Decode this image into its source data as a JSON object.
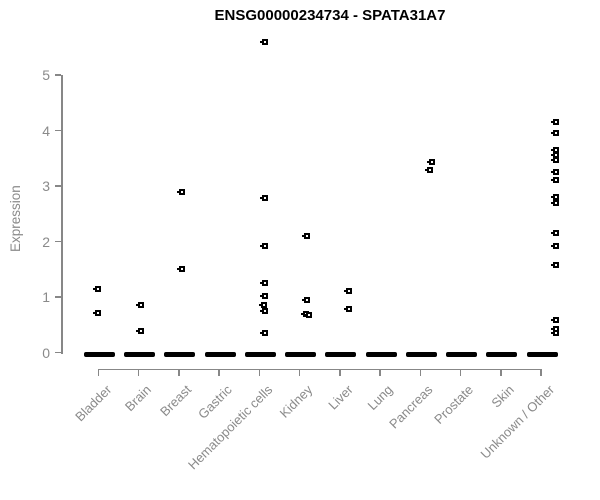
{
  "chart_data": {
    "type": "scatter",
    "subtype": "strip-plot",
    "title": "ENSG00000234734 - SPATA31A7",
    "xlabel": "",
    "ylabel": "Expression",
    "ylim": [
      0,
      5
    ],
    "yticks": [
      0,
      1,
      2,
      3,
      4,
      5
    ],
    "grid": "off",
    "legend": "none",
    "point_color": "#000000",
    "axis_color": "#878787",
    "axis_text_color": "#8a8a8a",
    "title_color": "#000000",
    "categories": [
      "Bladder",
      "Brain",
      "Breast",
      "Gastric",
      "Hematopoietic cells",
      "Kidney",
      "Liver",
      "Lung",
      "Pancreas",
      "Prostate",
      "Skin",
      "Unknown / Other"
    ],
    "note": "Each category shows a thick black bar of many overlapping points at expression 0; points listed below are the non-zero expression values [value, x_jitter_px].",
    "series": [
      {
        "name": "Bladder",
        "zero_cluster": true,
        "points": [
          [
            1.15,
            0
          ],
          [
            0.72,
            0
          ]
        ]
      },
      {
        "name": "Brain",
        "zero_cluster": true,
        "points": [
          [
            0.86,
            2.5
          ],
          [
            0.38,
            2.5
          ]
        ]
      },
      {
        "name": "Breast",
        "zero_cluster": true,
        "points": [
          [
            2.89,
            3
          ],
          [
            1.51,
            3
          ]
        ]
      },
      {
        "name": "Gastric",
        "zero_cluster": true,
        "points": []
      },
      {
        "name": "Hematopoietic cells",
        "zero_cluster": true,
        "points": [
          [
            5.59,
            5.5
          ],
          [
            2.78,
            5.5
          ],
          [
            1.92,
            5.5
          ],
          [
            1.26,
            5.5
          ],
          [
            1.01,
            5.5
          ],
          [
            0.85,
            5
          ],
          [
            0.74,
            6
          ],
          [
            0.36,
            5.5
          ]
        ]
      },
      {
        "name": "Kidney",
        "zero_cluster": true,
        "points": [
          [
            2.1,
            7.5
          ],
          [
            0.95,
            7.5
          ],
          [
            0.7,
            6
          ],
          [
            0.68,
            9.5
          ]
        ]
      },
      {
        "name": "Liver",
        "zero_cluster": true,
        "points": [
          [
            1.11,
            9
          ],
          [
            0.79,
            9
          ]
        ]
      },
      {
        "name": "Lung",
        "zero_cluster": true,
        "points": []
      },
      {
        "name": "Pancreas",
        "zero_cluster": true,
        "points": [
          [
            3.44,
            11.5
          ],
          [
            3.29,
            10
          ]
        ]
      },
      {
        "name": "Prostate",
        "zero_cluster": true,
        "points": []
      },
      {
        "name": "Skin",
        "zero_cluster": true,
        "points": []
      },
      {
        "name": "Unknown / Other",
        "zero_cluster": true,
        "points": [
          [
            4.16,
            15
          ],
          [
            3.96,
            15
          ],
          [
            3.65,
            15
          ],
          [
            3.56,
            15
          ],
          [
            3.46,
            15
          ],
          [
            3.26,
            15
          ],
          [
            3.11,
            15
          ],
          [
            2.81,
            14.5
          ],
          [
            2.7,
            15
          ],
          [
            2.16,
            15
          ],
          [
            1.92,
            15
          ],
          [
            1.58,
            15
          ],
          [
            0.59,
            15
          ],
          [
            0.43,
            15
          ],
          [
            0.35,
            15
          ]
        ]
      }
    ]
  }
}
